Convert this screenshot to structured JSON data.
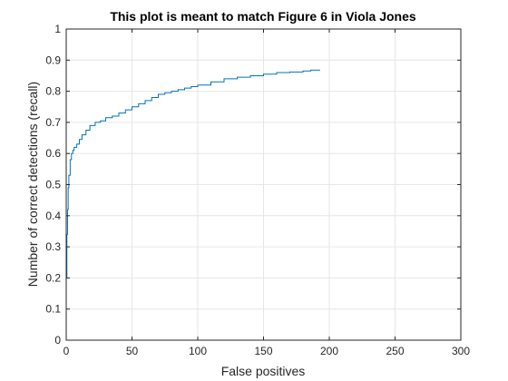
{
  "chart_data": {
    "type": "line",
    "title": "This plot is meant to match Figure 6 in Viola Jones",
    "xlabel": "False positives",
    "ylabel": "Number of correct detections (recall)",
    "xlim": [
      0,
      300
    ],
    "ylim": [
      0,
      1
    ],
    "x_ticks": [
      "0",
      "50",
      "100",
      "150",
      "200",
      "250",
      "300"
    ],
    "y_ticks": [
      "0",
      "0.1",
      "0.2",
      "0.3",
      "0.4",
      "0.5",
      "0.6",
      "0.7",
      "0.8",
      "0.9",
      "1"
    ],
    "grid": true,
    "series_color": "#0072bd",
    "series": [
      {
        "x": [
          0,
          0,
          0.5,
          0.5,
          1,
          1,
          1.5,
          1.5,
          2,
          2,
          3,
          3,
          4,
          4,
          5,
          5,
          6,
          6,
          8,
          8,
          10,
          10,
          12,
          12,
          15,
          15,
          18,
          18,
          22,
          22,
          26,
          26,
          30,
          30,
          35,
          35,
          40,
          40,
          45,
          45,
          50,
          50,
          55,
          55,
          60,
          60,
          65,
          65,
          70,
          70,
          75,
          75,
          80,
          80,
          85,
          85,
          90,
          90,
          95,
          95,
          100,
          100,
          110,
          110,
          120,
          120,
          130,
          130,
          140,
          140,
          150,
          150,
          160,
          160,
          170,
          170,
          180,
          180,
          186,
          186,
          193
        ],
        "y": [
          0,
          0.2,
          0.2,
          0.34,
          0.34,
          0.42,
          0.42,
          0.49,
          0.49,
          0.53,
          0.53,
          0.58,
          0.58,
          0.6,
          0.6,
          0.61,
          0.61,
          0.62,
          0.62,
          0.63,
          0.63,
          0.645,
          0.645,
          0.66,
          0.66,
          0.675,
          0.675,
          0.69,
          0.69,
          0.7,
          0.7,
          0.705,
          0.705,
          0.715,
          0.715,
          0.72,
          0.72,
          0.73,
          0.73,
          0.74,
          0.74,
          0.75,
          0.75,
          0.76,
          0.76,
          0.77,
          0.77,
          0.78,
          0.78,
          0.79,
          0.79,
          0.795,
          0.795,
          0.8,
          0.8,
          0.805,
          0.805,
          0.81,
          0.81,
          0.815,
          0.815,
          0.82,
          0.82,
          0.83,
          0.83,
          0.84,
          0.84,
          0.845,
          0.845,
          0.85,
          0.85,
          0.855,
          0.855,
          0.86,
          0.86,
          0.862,
          0.862,
          0.865,
          0.865,
          0.868,
          0.868
        ]
      }
    ]
  }
}
